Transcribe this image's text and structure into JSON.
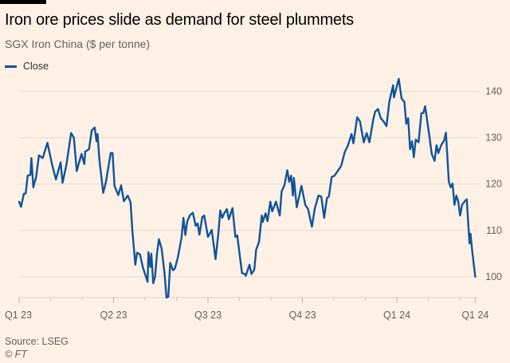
{
  "chart_data": {
    "type": "line",
    "title": "Iron ore prices slide as demand for steel plummets",
    "subtitle": "SGX Iron China ($ per tonne)",
    "xlabel": "",
    "ylabel": "",
    "x_units": "quarters since start of Q1 2023",
    "ylim": [
      95,
      145
    ],
    "yticks": [
      100,
      110,
      120,
      130,
      140
    ],
    "xticks": [
      {
        "value": 0,
        "label": "Q1 23"
      },
      {
        "value": 1,
        "label": "Q2 23"
      },
      {
        "value": 2,
        "label": "Q3 23"
      },
      {
        "value": 3,
        "label": "Q4 23"
      },
      {
        "value": 4,
        "label": "Q1 24"
      },
      {
        "value": 4.83,
        "label": "Q1 24"
      }
    ],
    "grid": true,
    "legend_position": "top-left",
    "series": [
      {
        "name": "Close",
        "color": "#0F5499",
        "x": [
          0,
          0.02,
          0.05,
          0.07,
          0.09,
          0.12,
          0.13,
          0.15,
          0.18,
          0.21,
          0.25,
          0.3,
          0.35,
          0.39,
          0.44,
          0.46,
          0.5,
          0.55,
          0.58,
          0.61,
          0.66,
          0.69,
          0.7,
          0.74,
          0.77,
          0.8,
          0.82,
          0.83,
          0.85,
          0.89,
          0.92,
          0.97,
          0.99,
          1.01,
          1.05,
          1.08,
          1.11,
          1.15,
          1.18,
          1.2,
          1.23,
          1.25,
          1.28,
          1.31,
          1.36,
          1.37,
          1.39,
          1.4,
          1.42,
          1.44,
          1.46,
          1.48,
          1.51,
          1.54,
          1.56,
          1.58,
          1.6,
          1.63,
          1.65,
          1.68,
          1.72,
          1.74,
          1.76,
          1.78,
          1.81,
          1.84,
          1.87,
          1.89,
          1.91,
          1.94,
          1.96,
          2.0,
          2.04,
          2.08,
          2.11,
          2.13,
          2.15,
          2.17,
          2.2,
          2.22,
          2.26,
          2.29,
          2.31,
          2.36,
          2.39,
          2.4,
          2.44,
          2.46,
          2.49,
          2.51,
          2.54,
          2.57,
          2.58,
          2.61,
          2.63,
          2.66,
          2.68,
          2.72,
          2.76,
          2.78,
          2.81,
          2.84,
          2.86,
          2.88,
          2.9,
          2.91,
          2.94,
          2.99,
          3.03,
          3.06,
          3.1,
          3.13,
          3.17,
          3.2,
          3.23,
          3.26,
          3.28,
          3.31,
          3.34,
          3.38,
          3.41,
          3.45,
          3.48,
          3.52,
          3.54,
          3.58,
          3.61,
          3.65,
          3.68,
          3.71,
          3.75,
          3.77,
          3.8,
          3.83,
          3.86,
          3.89,
          3.92,
          3.96,
          3.97,
          4.02,
          4.05,
          4.08,
          4.1,
          4.12,
          4.14,
          4.16,
          4.18,
          4.2,
          4.23,
          4.26,
          4.28,
          4.3,
          4.34,
          4.37,
          4.4,
          4.42,
          4.44,
          4.47,
          4.5,
          4.52,
          4.55,
          4.57,
          4.59,
          4.61,
          4.63,
          4.65,
          4.67,
          4.69,
          4.72,
          4.74,
          4.77,
          4.78,
          4.8,
          4.83
        ],
        "y": [
          116.2,
          115.1,
          117.9,
          118,
          121.8,
          122,
          125.6,
          119.3,
          121.5,
          126.2,
          125.6,
          128.9,
          124.1,
          121,
          124.7,
          120.3,
          124.1,
          131,
          130,
          122.8,
          126.5,
          124.3,
          127,
          127.5,
          131.6,
          132.2,
          129.2,
          130.8,
          125.3,
          118.1,
          120.5,
          126.7,
          126.7,
          119.6,
          117.6,
          119.7,
          116.3,
          117.5,
          116.1,
          109.8,
          102.6,
          105.2,
          104.8,
          102.1,
          98.9,
          105.3,
          102.1,
          105,
          98.6,
          100,
          105,
          108.1,
          106,
          100.7,
          95.5,
          95.7,
          103,
          101.4,
          101.8,
          104.1,
          108.4,
          112.7,
          109,
          111.9,
          113.3,
          113.8,
          111,
          111.5,
          109.1,
          112.9,
          113.2,
          108.6,
          110.1,
          103.8,
          109.3,
          114.3,
          112.7,
          113.6,
          114.6,
          112.4,
          114.8,
          108.6,
          108.9,
          100.8,
          100.6,
          100.2,
          102.6,
          100.6,
          101.5,
          105.8,
          107.5,
          113.2,
          111.8,
          113.7,
          112,
          116.2,
          114.1,
          116.2,
          113.2,
          118.4,
          119.8,
          123,
          120.5,
          121.8,
          117.5,
          121.3,
          115,
          119.6,
          115.5,
          114.6,
          110.8,
          114.6,
          117.5,
          117.3,
          112.7,
          117,
          117.3,
          121.5,
          121.8,
          123,
          123.9,
          127,
          128.2,
          130.8,
          128.8,
          134.4,
          133.5,
          129,
          131,
          129,
          133.9,
          135.6,
          136.2,
          134.2,
          133.5,
          132.5,
          137.7,
          141.3,
          138.7,
          142.7,
          138.5,
          137.7,
          133,
          134.2,
          127.5,
          129.2,
          125.8,
          129.6,
          129,
          135.3,
          135.3,
          136.8,
          131,
          126.5,
          125,
          128.4,
          126.7,
          128.4,
          129.4,
          131.1,
          120.6,
          119.3,
          120.1,
          115.5,
          117.5,
          116.3,
          113.2,
          115.5,
          116.3,
          116.7,
          107.2,
          109.3,
          105.2,
          100
        ]
      }
    ]
  },
  "source": "Source: LSEG",
  "credit": "© FT"
}
